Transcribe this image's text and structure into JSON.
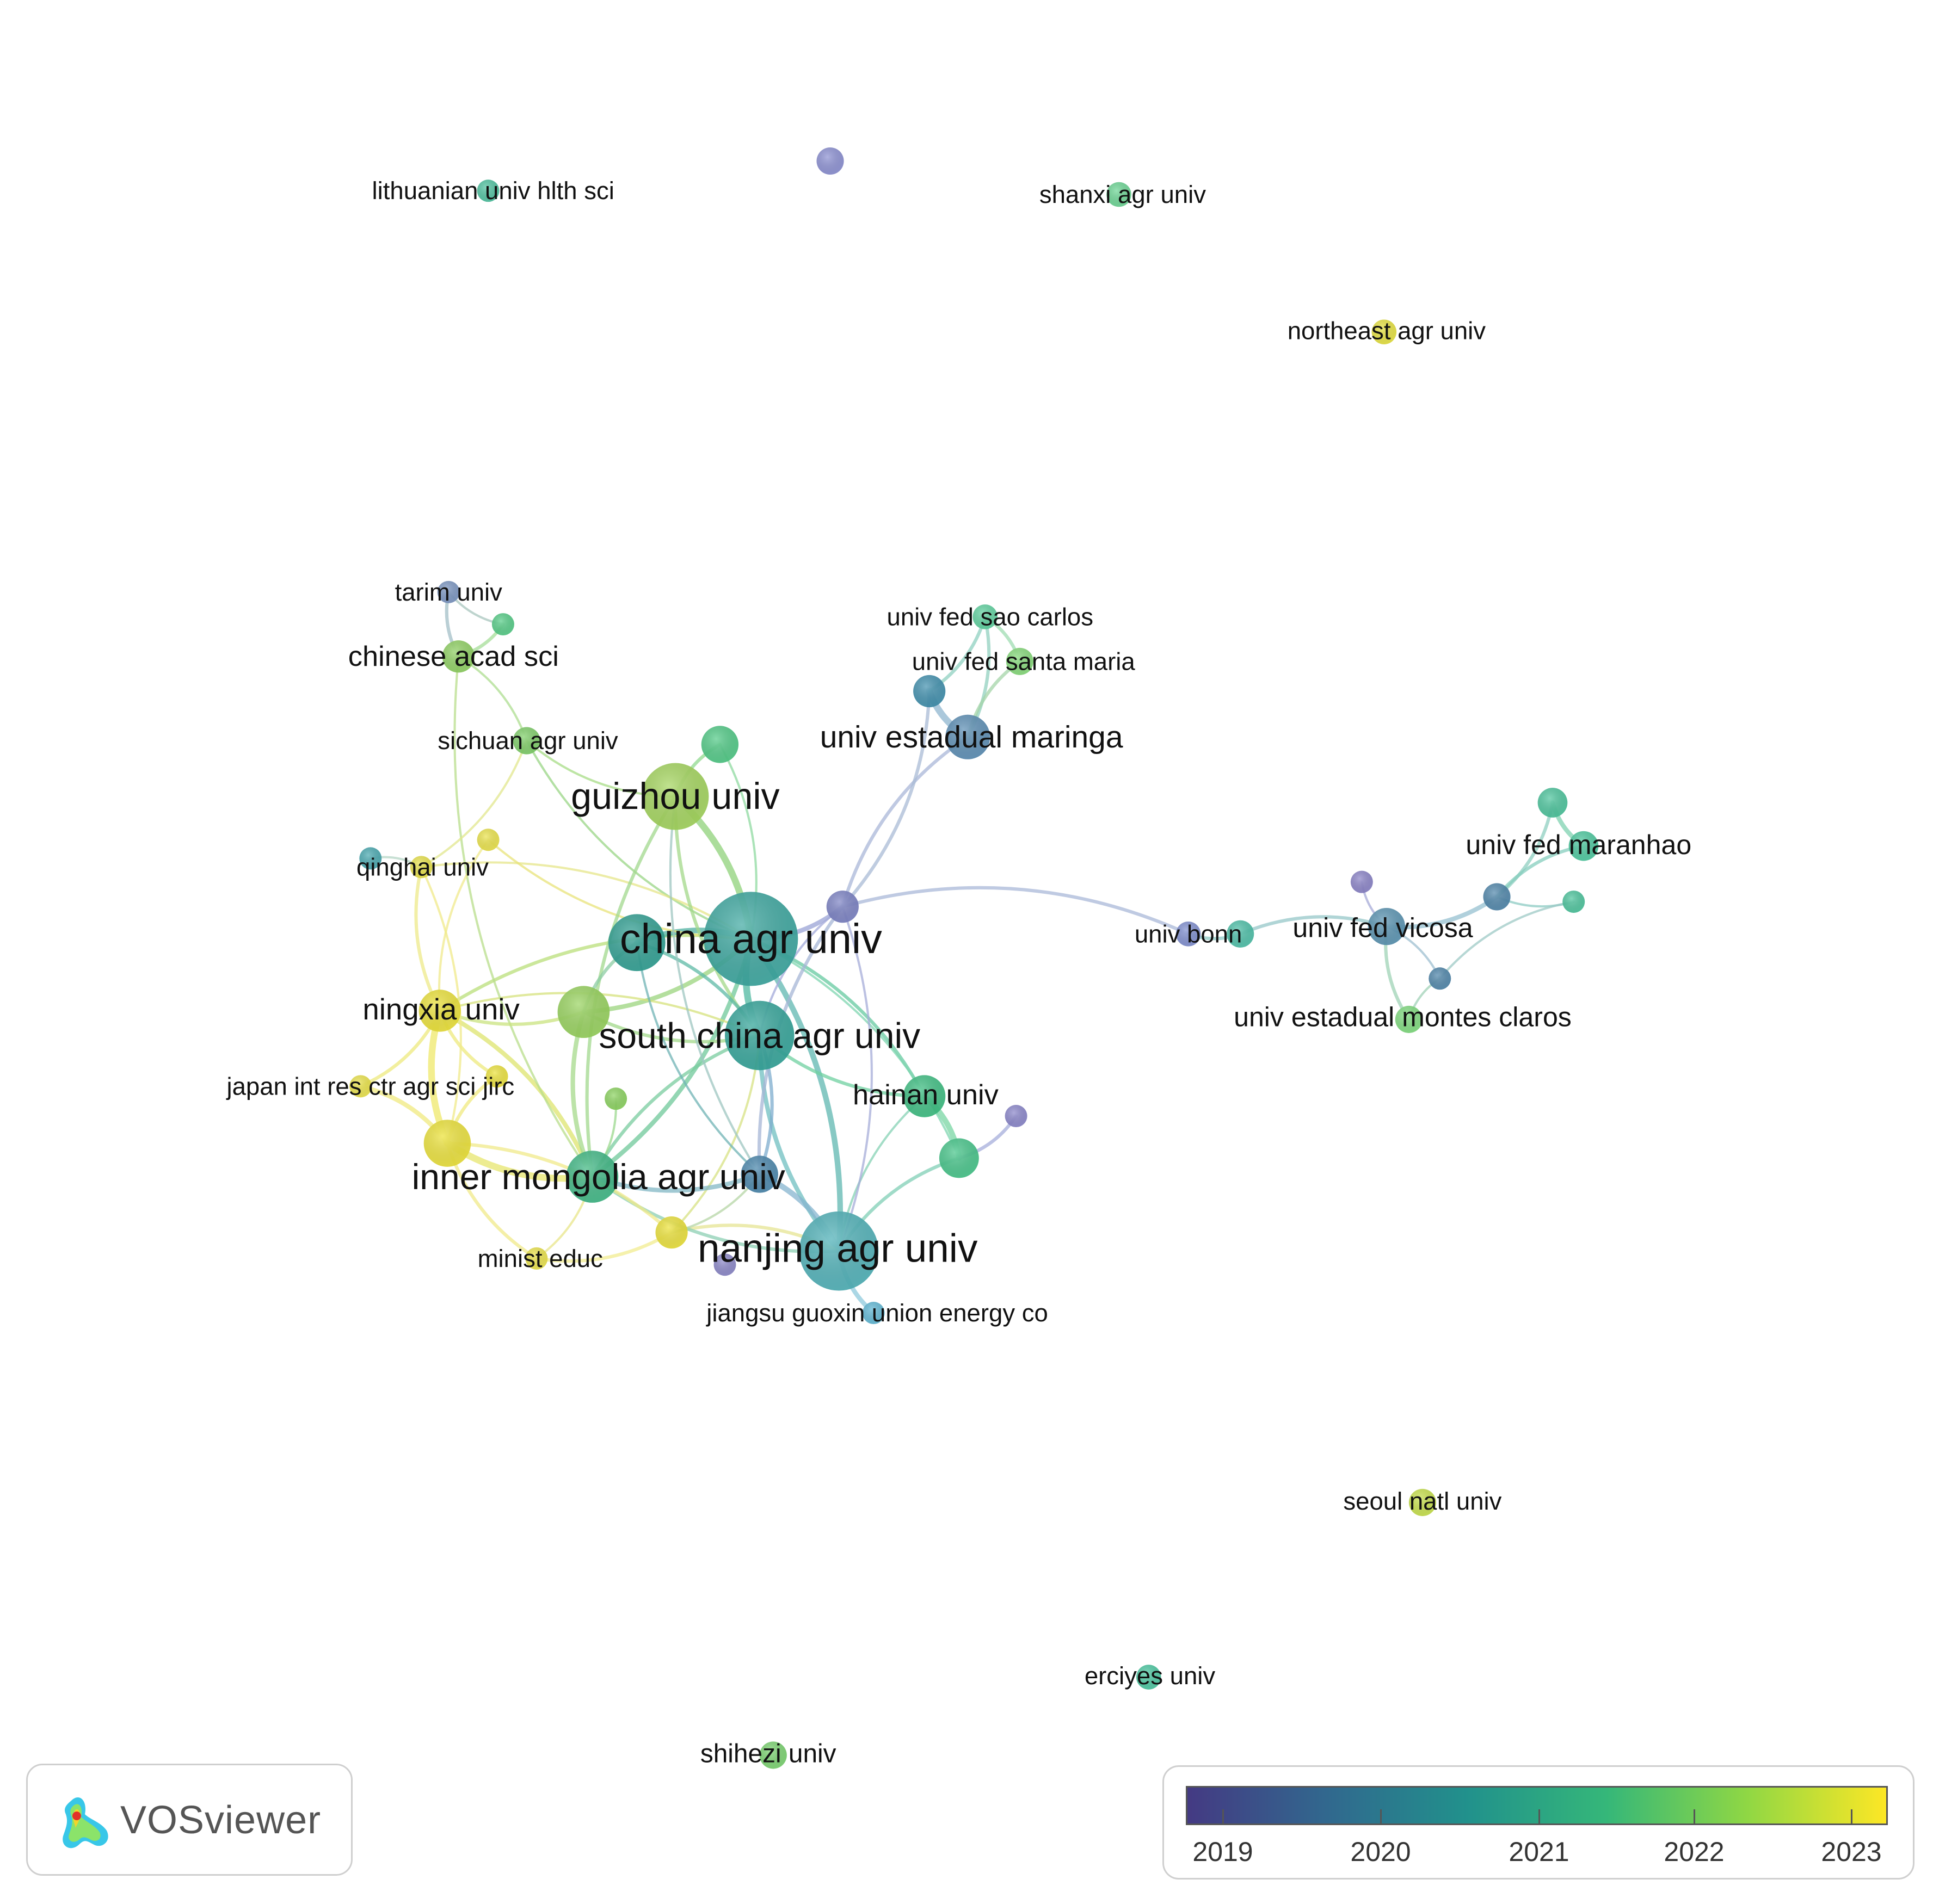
{
  "nodes": [
    {
      "id": "china-agr-univ",
      "label": "china agr univ",
      "size": "xl",
      "color": "#3ba7a0"
    },
    {
      "id": "south-china-agr-univ",
      "label": "south china agr univ",
      "size": "l",
      "color": "#33a59a"
    },
    {
      "id": "nanjing-agr-univ",
      "label": "nanjing agr univ",
      "size": "xl",
      "color": "#4fb2b8"
    },
    {
      "id": "guizhou-univ",
      "label": "guizhou univ",
      "size": "l",
      "color": "#a4d65c"
    },
    {
      "id": "inner-mongolia-agr-univ",
      "label": "inner mongolia agr univ",
      "size": "m",
      "color": "#3fb985"
    },
    {
      "id": "ningxia-univ",
      "label": "ningxia univ",
      "size": "m",
      "color": "#ede33a"
    },
    {
      "id": "hainan-univ",
      "label": "hainan univ",
      "size": "m",
      "color": "#3dbf82"
    },
    {
      "id": "univ-estadual-maringa",
      "label": "univ estadual maringa",
      "size": "m",
      "color": "#5b8eb5"
    },
    {
      "id": "chinese-acad-sci",
      "label": "chinese acad sci",
      "size": "s",
      "color": "#8fd162"
    },
    {
      "id": "sichuan-agr-univ",
      "label": "sichuan agr univ",
      "size": "s",
      "color": "#7fcf68"
    },
    {
      "id": "tarim-univ",
      "label": "tarim univ",
      "size": "s",
      "color": "#7b96c2"
    },
    {
      "id": "qinghai-univ",
      "label": "qinghai univ",
      "size": "s",
      "color": "#e9e34a"
    },
    {
      "id": "japan-int-res-ctr",
      "label": "japan int res ctr agr sci jirc",
      "size": "s",
      "color": "#ece44a"
    },
    {
      "id": "minist-educ",
      "label": "minist educ",
      "size": "s",
      "color": "#ece44a"
    },
    {
      "id": "jiangsu-guoxin",
      "label": "jiangsu guoxin union energy co",
      "size": "s",
      "color": "#5fb8d6"
    },
    {
      "id": "univ-fed-sao-carlos",
      "label": "univ fed sao carlos",
      "size": "s",
      "color": "#5ed3a0"
    },
    {
      "id": "univ-fed-santa-maria",
      "label": "univ fed santa maria",
      "size": "s",
      "color": "#86db7a"
    },
    {
      "id": "univ-fed-maranhao",
      "label": "univ fed maranhao",
      "size": "s",
      "color": "#4bc99e"
    },
    {
      "id": "univ-fed-vicosa",
      "label": "univ fed vicosa",
      "size": "m",
      "color": "#5994b2"
    },
    {
      "id": "univ-bonn",
      "label": "univ bonn",
      "size": "s",
      "color": "#7f8ed0"
    },
    {
      "id": "univ-estadual-montes-claros",
      "label": "univ estadual montes claros",
      "size": "s",
      "color": "#7fdc7e"
    },
    {
      "id": "lithuanian-univ-hlth-sci",
      "label": "lithuanian univ hlth sci",
      "size": "s",
      "color": "#4dc2a0"
    },
    {
      "id": "shanxi-agr-univ",
      "label": "shanxi agr univ",
      "size": "s",
      "color": "#6ad694"
    },
    {
      "id": "northeast-agr-univ",
      "label": "northeast agr univ",
      "size": "s",
      "color": "#e7e33e"
    },
    {
      "id": "seoul-natl-univ",
      "label": "seoul natl univ",
      "size": "s",
      "color": "#c8e24a"
    },
    {
      "id": "erciyes-univ",
      "label": "erciyes univ",
      "size": "s",
      "color": "#49c8a1"
    },
    {
      "id": "shihezi-univ",
      "label": "shihezi univ",
      "size": "s",
      "color": "#7ad46f"
    }
  ],
  "unlabeled_nodes": [
    {
      "id": "n-top",
      "color": "#8b8fd2"
    },
    {
      "id": "n-guizhou-up",
      "color": "#4fca86"
    },
    {
      "id": "n-tarim-green",
      "color": "#55cd87"
    },
    {
      "id": "n-qinghai-teal",
      "color": "#47a8b0"
    },
    {
      "id": "n-yellow-a",
      "color": "#ece44a"
    },
    {
      "id": "n-green-big",
      "color": "#98d45d"
    },
    {
      "id": "n-teal-big",
      "color": "#2f9f93"
    },
    {
      "id": "n-yellow-b",
      "color": "#ede33c"
    },
    {
      "id": "n-green-small",
      "color": "#8bd45e"
    },
    {
      "id": "n-yellow-big",
      "color": "#ede33a"
    },
    {
      "id": "n-yellow-c",
      "color": "#ede33a"
    },
    {
      "id": "n-purple-a",
      "color": "#7c82c4"
    },
    {
      "id": "n-purple-b",
      "color": "#8a85c8"
    },
    {
      "id": "n-blue-inner",
      "color": "#4a87ad"
    },
    {
      "id": "n-green-hainan",
      "color": "#45c58a"
    },
    {
      "id": "n-purple-hainan",
      "color": "#8a86cb"
    },
    {
      "id": "n-maringa-teal",
      "color": "#3f8fae"
    },
    {
      "id": "n-maranhao-a",
      "color": "#4bc49c"
    },
    {
      "id": "n-maranhao-b",
      "color": "#4bc49c"
    },
    {
      "id": "n-vicosa-purple",
      "color": "#8a82c8"
    },
    {
      "id": "n-vicosa-blue",
      "color": "#4e86aa"
    },
    {
      "id": "n-vicosa-blue2",
      "color": "#4e86aa"
    },
    {
      "id": "n-bonn-teal",
      "color": "#4cc0a8"
    }
  ],
  "legend": {
    "labels": [
      "2019",
      "2020",
      "2021",
      "2022",
      "2023"
    ],
    "gradient": [
      "#443a83",
      "#31688e",
      "#21918c",
      "#35b779",
      "#8fd744",
      "#fde725"
    ]
  },
  "logo": {
    "text": "VOSviewer"
  }
}
